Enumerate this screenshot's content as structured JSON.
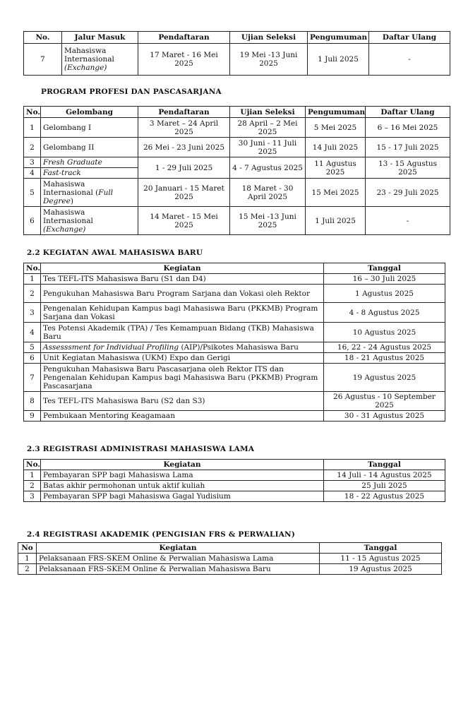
{
  "table_jalur": {
    "headers": [
      "No.",
      "Jalur Masuk",
      "Pendaftaran",
      "Ujian Seleksi",
      "Pengumuman",
      "Daftar Ulang"
    ],
    "rows": [
      {
        "no": "7",
        "jalur": "Mahasiswa Internasional",
        "jalur_italic": "(Exchange)",
        "pendaftaran": "17 Maret - 16 Mei 2025",
        "ujian": "19 Mei -13 Juni 2025",
        "pengumuman": "1 Juli 2025",
        "daftar": "-"
      }
    ]
  },
  "profesi": {
    "title": "PROGRAM PROFESI DAN PASCASARJANA",
    "headers": [
      "No.",
      "Gelombang",
      "Pendaftaran",
      "Ujian Seleksi",
      "Pengumuman",
      "Daftar Ulang"
    ],
    "rows": [
      {
        "no": "1",
        "gel": "Gelombang I",
        "pendaftaran": "3 Maret – 24 April 2025",
        "ujian": "28 April – 2 Mei 2025",
        "pengumuman": "5 Mei 2025",
        "daftar": "6 – 16 Mei 2025"
      },
      {
        "no": "2",
        "gel": "Gelombang II",
        "pendaftaran": "26 Mei - 23 Juni 2025",
        "ujian": "30 Juni - 11 Juli 2025",
        "pengumuman": "14 Juli 2025",
        "daftar": "15 - 17 Juli 2025"
      },
      {
        "no": "3",
        "gel": "Fresh Graduate",
        "pendaftaran": "1 - 29 Juli 2025",
        "ujian": "4 - 7 Agustus 2025",
        "pengumuman": "11 Agustus 2025",
        "daftar": "13 - 15 Agustus 2025"
      },
      {
        "no": "4",
        "gel": "Fast-track"
      },
      {
        "no": "5",
        "gel": "Mahasiswa Internasional (",
        "gel_italic": "Full Degree",
        "gel_end": ")",
        "pendaftaran": "20 Januari - 15 Maret 2025",
        "ujian": "18 Maret - 30 April 2025",
        "pengumuman": "15 Mei 2025",
        "daftar": "23 - 29 Juli 2025"
      },
      {
        "no": "6",
        "gel": "Mahasiswa Internasional",
        "gel_italic": "(Exchange)",
        "pendaftaran": "14 Maret - 15 Mei 2025",
        "ujian": "15 Mei -13 Juni 2025",
        "pengumuman": "1 Juli 2025",
        "daftar": "-"
      }
    ]
  },
  "kegiatan_awal": {
    "title": "2.2 KEGIATAN AWAL MAHASISWA BARU",
    "headers": [
      "No.",
      "Kegiatan",
      "Tanggal"
    ],
    "rows": [
      {
        "no": "1",
        "kegiatan": "Tes TEFL-ITS Mahasiswa Baru (S1 dan D4)",
        "tanggal": "16 – 30 Juli 2025"
      },
      {
        "no": "2",
        "kegiatan": "Pengukuhan Mahasiswa Baru Program Sarjana dan Vokasi oleh Rektor",
        "tanggal": "1 Agustus 2025"
      },
      {
        "no": "3",
        "kegiatan": "Pengenalan Kehidupan Kampus bagi Mahasiswa Baru (PKKMB) Program Sarjana dan Vokasi",
        "tanggal": "4 - 8 Agustus 2025"
      },
      {
        "no": "4",
        "kegiatan": "Tes Potensi Akademik (TPA) / Tes Kemampuan Bidang (TKB) Mahasiswa Baru",
        "tanggal": "10 Agustus 2025"
      },
      {
        "no": "5",
        "kegiatan_italic": "Assesssment for Individual Profiling",
        "kegiatan": " (AIP)/Psikotes Mahasiswa Baru",
        "tanggal": "16, 22 - 24 Agustus 2025"
      },
      {
        "no": "6",
        "kegiatan": "Unit Kegiatan Mahasiswa (UKM) Expo dan Gerigi",
        "tanggal": "18 - 21 Agustus 2025"
      },
      {
        "no": "7",
        "kegiatan": "Pengukuhan Mahasiswa Baru Pascasarjana oleh Rektor ITS dan Pengenalan Kehidupan Kampus bagi Mahasiswa Baru (PKKMB) Program Pascasarjana",
        "tanggal": "19 Agustus 2025"
      },
      {
        "no": "8",
        "kegiatan": "Tes TEFL-ITS Mahasiswa Baru (S2 dan S3)",
        "tanggal": "26 Agustus - 10 September 2025"
      },
      {
        "no": "9",
        "kegiatan": "Pembukaan Mentoring Keagamaan",
        "tanggal": "30 - 31 Agustus 2025"
      }
    ]
  },
  "registrasi_lama": {
    "title": "2.3 REGISTRASI ADMINISTRASI MAHASISWA LAMA",
    "headers": [
      "No.",
      "Kegiatan",
      "Tanggal"
    ],
    "rows": [
      {
        "no": "1",
        "kegiatan": "Pembayaran SPP bagi Mahasiswa Lama",
        "tanggal": "14 Juli - 14 Agustus 2025"
      },
      {
        "no": "2",
        "kegiatan": "Batas akhir permohonan untuk aktif kuliah",
        "tanggal": "25 Juli 2025"
      },
      {
        "no": "3",
        "kegiatan": "Pembayaran SPP bagi Mahasiswa Gagal Yudisium",
        "tanggal": "18 - 22 Agustus 2025"
      }
    ]
  },
  "registrasi_akademik": {
    "title": "2.4 REGISTRASI AKADEMIK (PENGISIAN FRS & PERWALIAN)",
    "headers": [
      "No",
      "Kegiatan",
      "Tanggal"
    ],
    "rows": [
      {
        "no": "1",
        "kegiatan": "Pelaksanaan FRS-SKEM Online & Perwalian Mahasiswa Lama",
        "tanggal": "11 - 15 Agustus 2025"
      },
      {
        "no": "2",
        "kegiatan": "Pelaksanaan FRS-SKEM Online & Perwalian Mahasiswa Baru",
        "tanggal": "19 Agustus 2025"
      }
    ]
  }
}
